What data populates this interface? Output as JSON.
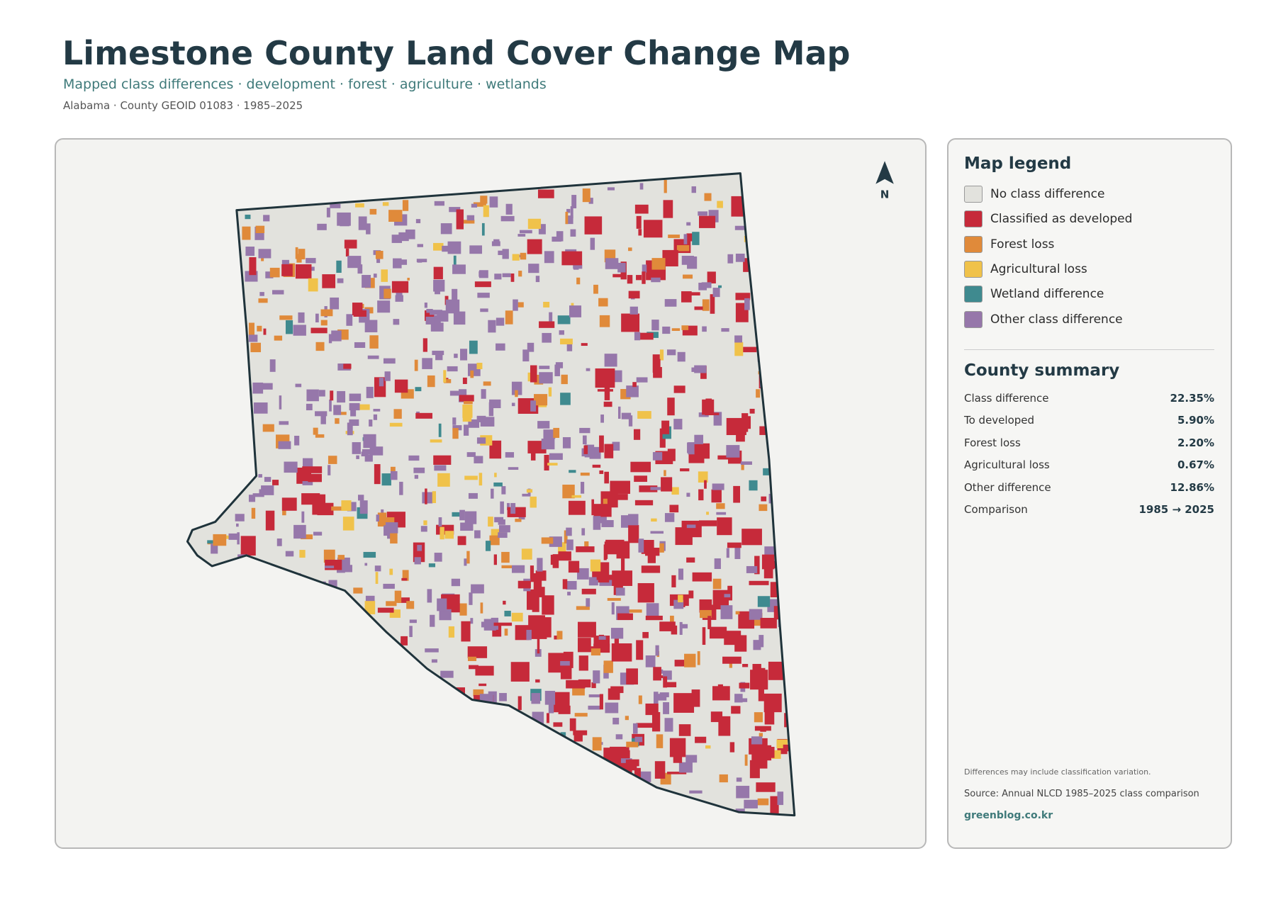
{
  "header": {
    "title": "Limestone County Land Cover Change Map",
    "subtitle": "Mapped class differences · development · forest · agriculture · wetlands",
    "meta": "Alabama · County GEOID 01083 · 1985–2025"
  },
  "map": {
    "north": "N"
  },
  "legend": {
    "title": "Map legend",
    "items": [
      {
        "label": "No class difference",
        "color": "#e2e2dd"
      },
      {
        "label": "Classified as developed",
        "color": "#c62a3a"
      },
      {
        "label": "Forest loss",
        "color": "#e08a3a"
      },
      {
        "label": "Agricultural loss",
        "color": "#f0c24a"
      },
      {
        "label": "Wetland difference",
        "color": "#3f8a8f"
      },
      {
        "label": "Other class difference",
        "color": "#9677aa"
      }
    ]
  },
  "summary": {
    "title": "County summary",
    "rows": [
      [
        "Class difference",
        "22.35%"
      ],
      [
        "To developed",
        "5.90%"
      ],
      [
        "Forest loss",
        "2.20%"
      ],
      [
        "Agricultural loss",
        "0.67%"
      ],
      [
        "Other difference",
        "12.86%"
      ],
      [
        "Comparison",
        "1985 → 2025"
      ]
    ]
  },
  "notes": {
    "caveat": "Differences may include classification variation.",
    "source": "Source: Annual NLCD 1985–2025 class comparison",
    "site": "greenblog.co.kr"
  }
}
